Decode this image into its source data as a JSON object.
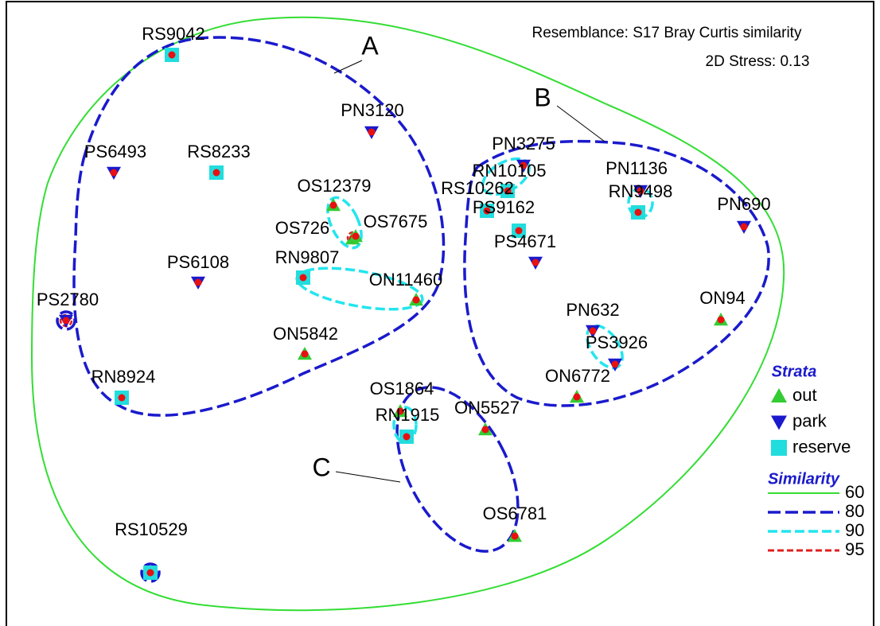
{
  "header": {
    "resemblance": "Resemblance: S17 Bray Curtis similarity",
    "stress": "2D Stress: 0.13"
  },
  "groups": [
    "A",
    "B",
    "C"
  ],
  "points": [
    {
      "label": "RS9042"
    },
    {
      "label": "PN3120"
    },
    {
      "label": "PS6493"
    },
    {
      "label": "RS8233"
    },
    {
      "label": "OS12379"
    },
    {
      "label": "OS726"
    },
    {
      "label": "OS7675"
    },
    {
      "label": "RN9807"
    },
    {
      "label": "ON11460"
    },
    {
      "label": "PS6108"
    },
    {
      "label": "PS2780"
    },
    {
      "label": "ON5842"
    },
    {
      "label": "RN8924"
    },
    {
      "label": "RS10529"
    },
    {
      "label": "PN3275"
    },
    {
      "label": "RN10105"
    },
    {
      "label": "RS10262"
    },
    {
      "label": "PS9162"
    },
    {
      "label": "PS4671"
    },
    {
      "label": "PN1136"
    },
    {
      "label": "RN9498"
    },
    {
      "label": "PN690"
    },
    {
      "label": "PN632"
    },
    {
      "label": "PS3926"
    },
    {
      "label": "ON94"
    },
    {
      "label": "ON6772"
    },
    {
      "label": "OS1864"
    },
    {
      "label": "RN1915"
    },
    {
      "label": "ON5527"
    },
    {
      "label": "OS6781"
    }
  ],
  "legend": {
    "strata_title": "Strata",
    "strata": [
      "out",
      "park",
      "reserve"
    ],
    "similarity_title": "Similarity",
    "similarity": [
      "60",
      "80",
      "90",
      "95"
    ]
  }
}
